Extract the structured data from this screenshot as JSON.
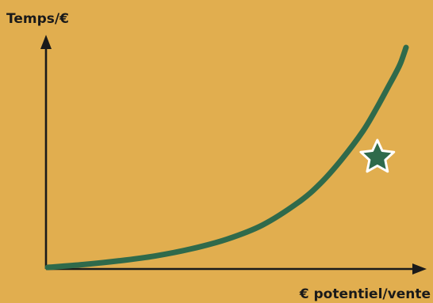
{
  "chart_data": {
    "type": "line",
    "title": "",
    "xlabel": "€ potentiel/vente",
    "ylabel": "Temps/€",
    "xlim": [
      0,
      1
    ],
    "ylim": [
      0,
      1
    ],
    "grid": false,
    "legend": "none",
    "ticks": false,
    "series": [
      {
        "color": "#2F6A4B",
        "x": [
          0,
          0.1,
          0.2,
          0.3,
          0.4,
          0.5,
          0.6,
          0.7,
          0.76,
          0.82,
          0.88,
          0.92,
          0.95,
          0.97,
          0.985,
          1.0
        ],
        "y": [
          0,
          0.013,
          0.03,
          0.052,
          0.084,
          0.128,
          0.193,
          0.296,
          0.38,
          0.49,
          0.62,
          0.73,
          0.82,
          0.88,
          0.93,
          1.0
        ]
      }
    ],
    "marker": {
      "shape": "star",
      "x": 0.92,
      "y": 0.5,
      "color": "#2F6A4B",
      "outline": "#FFFFFF"
    }
  },
  "colors": {
    "background": "#E1AE4F",
    "axis": "#1A1A1A",
    "curve": "#2F6A4B"
  }
}
